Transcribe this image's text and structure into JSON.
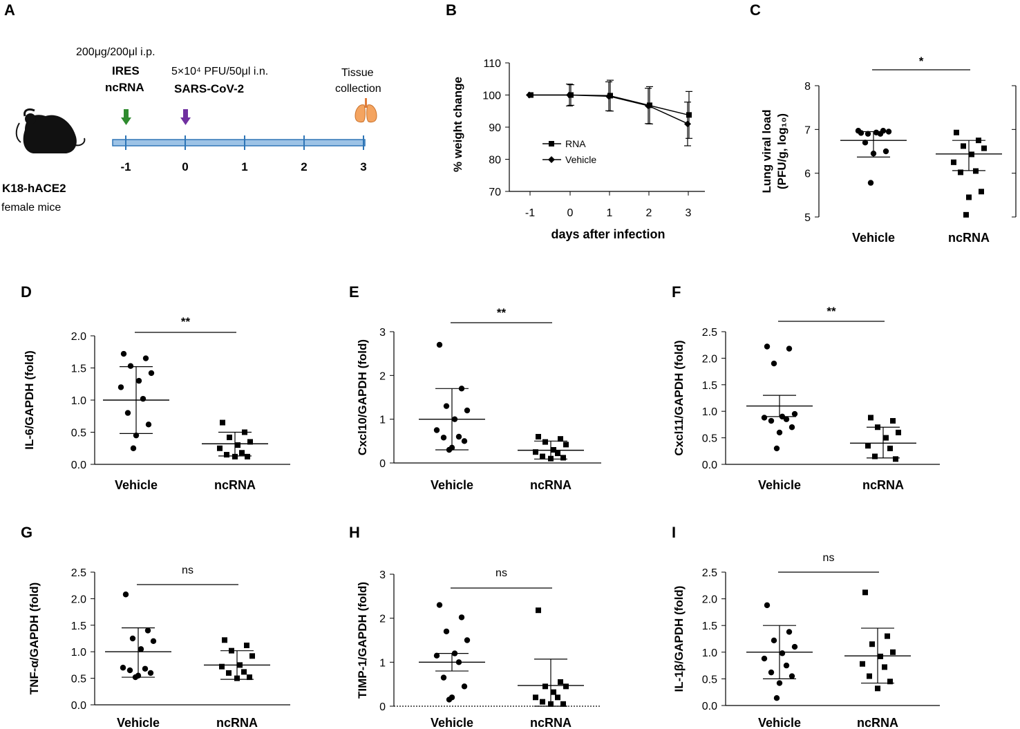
{
  "panel_letters": [
    "A",
    "B",
    "C",
    "D",
    "E",
    "F",
    "G",
    "H",
    "I"
  ],
  "schematic": {
    "dose_label": "200μg/200μl i.p.",
    "treatment_line1": "IRES",
    "treatment_line2": "ncRNA",
    "infection_dose": "5×10⁴ PFU/50μl i.n.",
    "virus_label": "SARS-CoV-2",
    "tissue_line1": "Tissue",
    "tissue_line2": "collection",
    "timeline_days": [
      "-1",
      "0",
      "1",
      "2",
      "3"
    ],
    "mouse_line1": "K18-hACE2",
    "mouse_line2": "female mice",
    "colors": {
      "timeline": "#9dc3e6",
      "timeline_edge": "#2e75b6",
      "treatment_arrow": "#2e8b2e",
      "infection_arrow": "#7030a0",
      "lung": "#f4a460"
    },
    "icons": [
      "mouse-icon",
      "lung-icon"
    ]
  },
  "chart_data": [
    {
      "id": "B",
      "type": "line",
      "ylabel": "% weight change",
      "xlabel": "days after infection",
      "x": [
        -1,
        0,
        1,
        2,
        3
      ],
      "xticks": [
        "-1",
        "0",
        "1",
        "2",
        "3"
      ],
      "ylim": [
        70,
        110
      ],
      "yticks": [
        70,
        80,
        90,
        100,
        110
      ],
      "series": [
        {
          "name": "RNA",
          "marker": "square",
          "values": [
            100,
            100,
            99.8,
            96.8,
            93.8
          ],
          "err": [
            0,
            3.2,
            4.8,
            5.8,
            7.3
          ]
        },
        {
          "name": "Vehicle",
          "marker": "diamond",
          "values": [
            100,
            100,
            99.6,
            96.6,
            91.0
          ],
          "err": [
            0,
            3.4,
            4.5,
            5.5,
            6.8
          ]
        }
      ]
    },
    {
      "id": "C",
      "type": "scatter",
      "ylabel": "Lung viral load",
      "ylabel2": "(PFU/g,  log₁₀)",
      "ylim": [
        5,
        8
      ],
      "yticks": [
        "5",
        "6",
        "7",
        "8"
      ],
      "ytick_values": [
        5,
        6,
        7,
        8
      ],
      "sig": "*",
      "sig_bold": true,
      "groups": [
        {
          "name": "Vehicle",
          "marker": "circle",
          "mean": 6.75,
          "err_upper": 6.95,
          "err_lower": 6.37,
          "points": [
            6.92,
            6.97,
            6.9,
            6.95,
            6.93,
            6.97,
            6.9,
            6.7,
            6.5,
            6.45,
            5.78
          ]
        },
        {
          "name": "ncRNA",
          "marker": "square",
          "mean": 6.44,
          "err_upper": 6.75,
          "err_lower": 6.06,
          "points": [
            6.93,
            6.75,
            6.62,
            6.57,
            6.43,
            6.25,
            6.05,
            6.02,
            5.58,
            5.45,
            5.05
          ]
        }
      ]
    },
    {
      "id": "D",
      "type": "scatter",
      "ylabel": "IL-6/GAPDH  (fold)",
      "ylim": [
        0,
        2.0
      ],
      "yticks": [
        "0.0",
        "0.5",
        "1.0",
        "1.5",
        "2.0"
      ],
      "ytick_values": [
        0,
        0.5,
        1.0,
        1.5,
        2.0
      ],
      "sig": "**",
      "sig_bold": true,
      "groups": [
        {
          "name": "Vehicle",
          "marker": "circle",
          "mean": 1.0,
          "err_upper": 1.52,
          "err_lower": 0.48,
          "points": [
            1.72,
            1.65,
            1.53,
            1.42,
            1.3,
            1.2,
            1.02,
            0.8,
            0.62,
            0.45,
            0.25
          ]
        },
        {
          "name": "ncRNA",
          "marker": "square",
          "mean": 0.32,
          "err_upper": 0.5,
          "err_lower": 0.13,
          "points": [
            0.65,
            0.5,
            0.42,
            0.35,
            0.3,
            0.25,
            0.18,
            0.15,
            0.12,
            0.12
          ]
        }
      ]
    },
    {
      "id": "E",
      "type": "scatter",
      "ylabel": "Cxcl10/GAPDH  (fold)",
      "ylim": [
        0,
        3
      ],
      "yticks": [
        "0",
        "1",
        "2",
        "3"
      ],
      "ytick_values": [
        0,
        1,
        2,
        3
      ],
      "sig": "**",
      "sig_bold": true,
      "groups": [
        {
          "name": "Vehicle",
          "marker": "circle",
          "mean": 1.0,
          "err_upper": 1.7,
          "err_lower": 0.3,
          "points": [
            2.7,
            1.7,
            1.3,
            1.2,
            1.0,
            0.75,
            0.6,
            0.58,
            0.5,
            0.35,
            0.3
          ]
        },
        {
          "name": "ncRNA",
          "marker": "square",
          "mean": 0.29,
          "err_upper": 0.5,
          "err_lower": 0.09,
          "points": [
            0.6,
            0.55,
            0.48,
            0.42,
            0.3,
            0.25,
            0.22,
            0.15,
            0.12,
            0.1
          ]
        }
      ]
    },
    {
      "id": "F",
      "type": "scatter",
      "ylabel": "Cxcl11/GAPDH  (fold)",
      "ylim": [
        0,
        2.5
      ],
      "yticks": [
        "0.0",
        "0.5",
        "1.0",
        "1.5",
        "2.0",
        "2.5"
      ],
      "ytick_values": [
        0,
        0.5,
        1.0,
        1.5,
        2.0,
        2.5
      ],
      "sig": "**",
      "sig_bold": true,
      "groups": [
        {
          "name": "Vehicle",
          "marker": "circle",
          "mean": 1.1,
          "err_upper": 1.3,
          "err_lower": 0.9,
          "points": [
            2.22,
            2.18,
            1.9,
            0.95,
            0.9,
            0.88,
            0.85,
            0.82,
            0.7,
            0.6,
            0.3
          ]
        },
        {
          "name": "ncRNA",
          "marker": "square",
          "mean": 0.4,
          "err_upper": 0.7,
          "err_lower": 0.12,
          "points": [
            0.88,
            0.82,
            0.7,
            0.6,
            0.5,
            0.35,
            0.3,
            0.15,
            0.1
          ]
        }
      ]
    },
    {
      "id": "G",
      "type": "scatter",
      "ylabel": "TNF-α/GAPDH  (fold)",
      "ylim": [
        0,
        2.5
      ],
      "yticks": [
        "0.0",
        "0.5",
        "1.0",
        "1.5",
        "2.0",
        "2.5"
      ],
      "ytick_values": [
        0,
        0.5,
        1.0,
        1.5,
        2.0,
        2.5
      ],
      "sig": "ns",
      "sig_bold": false,
      "groups": [
        {
          "name": "Vehicle",
          "marker": "circle",
          "mean": 1.0,
          "err_upper": 1.45,
          "err_lower": 0.52,
          "points": [
            2.08,
            1.4,
            1.25,
            1.2,
            1.05,
            0.7,
            0.68,
            0.65,
            0.6,
            0.55,
            0.52
          ]
        },
        {
          "name": "ncRNA",
          "marker": "square",
          "mean": 0.75,
          "err_upper": 1.02,
          "err_lower": 0.48,
          "points": [
            1.22,
            1.12,
            1.02,
            0.92,
            0.75,
            0.72,
            0.62,
            0.6,
            0.52,
            0.5
          ]
        }
      ]
    },
    {
      "id": "H",
      "type": "scatter",
      "ylabel": "TIMP-1/GAPDH  (fold)",
      "ylim": [
        0,
        3
      ],
      "yticks": [
        "0",
        "1",
        "2",
        "3"
      ],
      "ytick_values": [
        0,
        1,
        2,
        3
      ],
      "sig": "ns",
      "sig_bold": false,
      "groups": [
        {
          "name": "Vehicle",
          "marker": "circle",
          "mean": 1.0,
          "err_upper": 1.2,
          "err_lower": 0.8,
          "points": [
            2.3,
            2.02,
            1.7,
            1.5,
            1.2,
            1.15,
            1.0,
            0.65,
            0.45,
            0.2,
            0.15
          ]
        },
        {
          "name": "ncRNA",
          "marker": "square",
          "mean": 0.47,
          "err_upper": 1.07,
          "err_lower": 0.0,
          "points": [
            2.18,
            0.55,
            0.45,
            0.45,
            0.32,
            0.2,
            0.2,
            0.1,
            0.05,
            0.05
          ]
        }
      ]
    },
    {
      "id": "I",
      "type": "scatter",
      "ylabel": "IL-1β/GAPDH  (fold)",
      "ylim": [
        0,
        2.5
      ],
      "yticks": [
        "0.0",
        "0.5",
        "1.0",
        "1.5",
        "2.0",
        "2.5"
      ],
      "ytick_values": [
        0,
        0.5,
        1.0,
        1.5,
        2.0,
        2.5
      ],
      "sig": "ns",
      "sig_bold": false,
      "groups": [
        {
          "name": "Vehicle",
          "marker": "circle",
          "mean": 1.0,
          "err_upper": 1.5,
          "err_lower": 0.5,
          "points": [
            1.88,
            1.38,
            1.22,
            1.1,
            0.98,
            0.88,
            0.75,
            0.62,
            0.55,
            0.42,
            0.14
          ]
        },
        {
          "name": "ncRNA",
          "marker": "square",
          "mean": 0.93,
          "err_upper": 1.45,
          "err_lower": 0.42,
          "points": [
            2.12,
            1.3,
            1.15,
            1.0,
            0.92,
            0.78,
            0.72,
            0.55,
            0.45,
            0.32
          ]
        }
      ]
    }
  ]
}
